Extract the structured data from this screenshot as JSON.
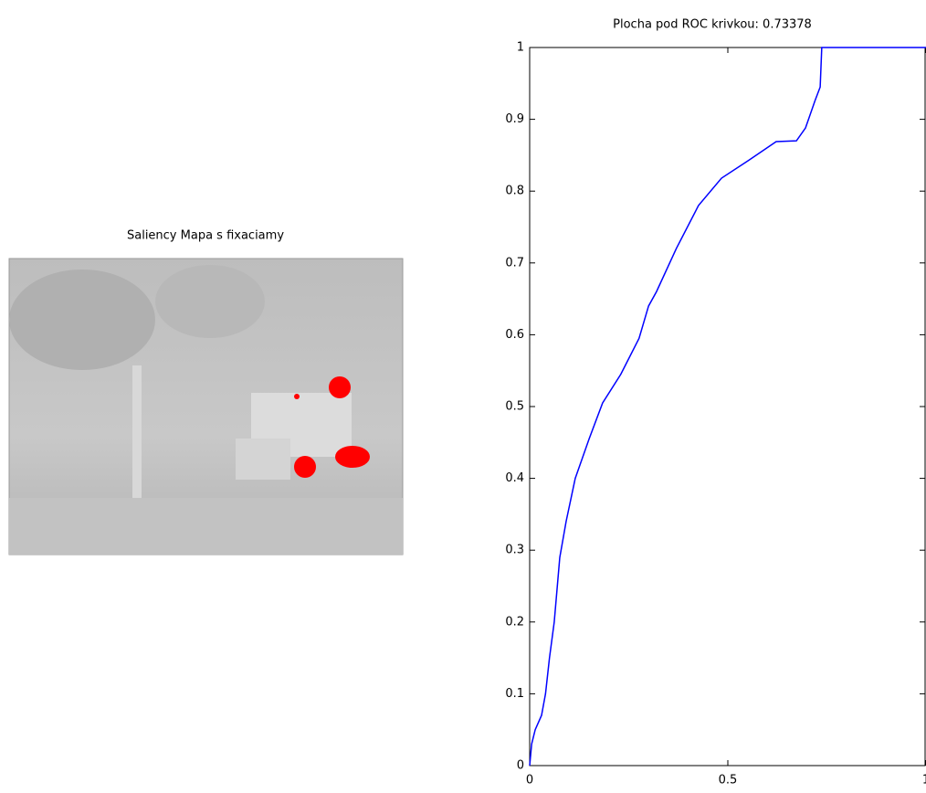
{
  "image_title": "Saliency Mapa s fixaciamy",
  "chart_data": {
    "type": "line",
    "title": "Plocha pod ROC krivkou: 0.73378",
    "x": [
      0,
      0.005,
      0.014,
      0.03,
      0.04,
      0.05,
      0.062,
      0.076,
      0.092,
      0.115,
      0.15,
      0.184,
      0.23,
      0.276,
      0.3,
      0.32,
      0.37,
      0.426,
      0.484,
      0.553,
      0.622,
      0.673,
      0.696,
      0.72,
      0.733,
      0.737,
      1
    ],
    "series": [
      {
        "color": "#0000ff",
        "values": [
          0,
          0.03,
          0.05,
          0.07,
          0.1,
          0.15,
          0.2,
          0.29,
          0.34,
          0.4,
          0.455,
          0.505,
          0.545,
          0.595,
          0.64,
          0.66,
          0.72,
          0.78,
          0.818,
          0.843,
          0.869,
          0.87,
          0.888,
          0.926,
          0.945,
          1,
          1
        ]
      }
    ],
    "xlim": [
      0,
      1
    ],
    "ylim": [
      0,
      1
    ],
    "xticks": [
      0,
      0.5,
      1
    ],
    "yticks": [
      0,
      0.1,
      0.2,
      0.3,
      0.4,
      0.5,
      0.6,
      0.7,
      0.8,
      0.9,
      1
    ]
  }
}
